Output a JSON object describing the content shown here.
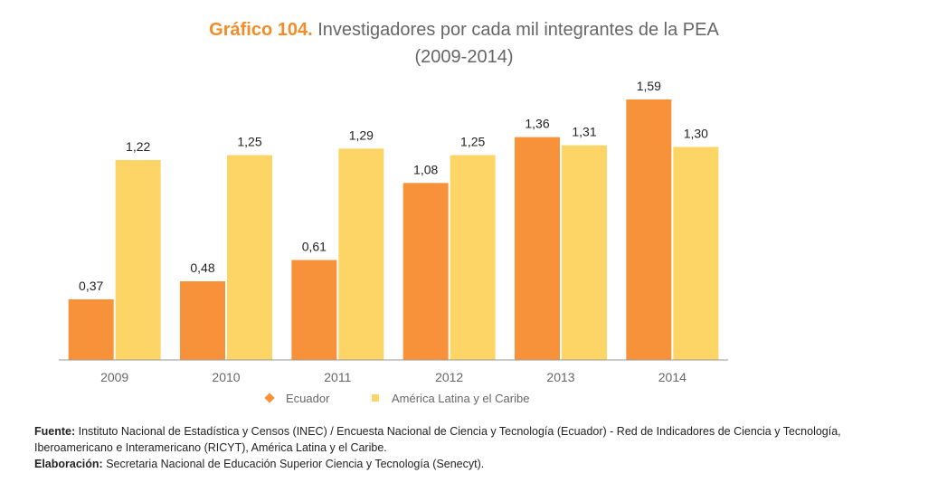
{
  "chart_data": {
    "type": "bar",
    "title_label": "Gráfico 104.",
    "title": "Investigadores por cada mil integrantes de la PEA",
    "subtitle": "(2009-2014)",
    "categories": [
      "2009",
      "2010",
      "2011",
      "2012",
      "2013",
      "2014"
    ],
    "series": [
      {
        "name": "Ecuador",
        "values": [
          0.37,
          0.48,
          0.61,
          1.08,
          1.36,
          1.59
        ],
        "labels": [
          "0,37",
          "0,48",
          "0,61",
          "1,08",
          "1,36",
          "1,59"
        ],
        "color": "#F7923A"
      },
      {
        "name": "América Latina y el Caribe",
        "values": [
          1.22,
          1.25,
          1.29,
          1.25,
          1.31,
          1.3
        ],
        "labels": [
          "1,22",
          "1,25",
          "1,29",
          "1,25",
          "1,31",
          "1,30"
        ],
        "color": "#FDD466"
      }
    ],
    "ylim": [
      0,
      1.7
    ],
    "grid": false,
    "legend_position": "bottom",
    "legend_markers": [
      "diamond",
      "square"
    ],
    "xlabel": "",
    "ylabel": ""
  },
  "notes": {
    "source_label": "Fuente:",
    "source_text": " Instituto Nacional de Estadística y Censos (INEC) / Encuesta Nacional de Ciencia y Tecnología (Ecuador) - Red de Indicadores de Ciencia y Tecnología, Iberoamericano e Interamericano (RICYT), América Latina y el Caribe.",
    "elaboration_label": "Elaboración:",
    "elaboration_text": " Secretaria Nacional de Educación Superior Ciencia y Tecnología (Senecyt)."
  },
  "colors": {
    "title_accent": "#F28C28",
    "axis": "#999999"
  }
}
